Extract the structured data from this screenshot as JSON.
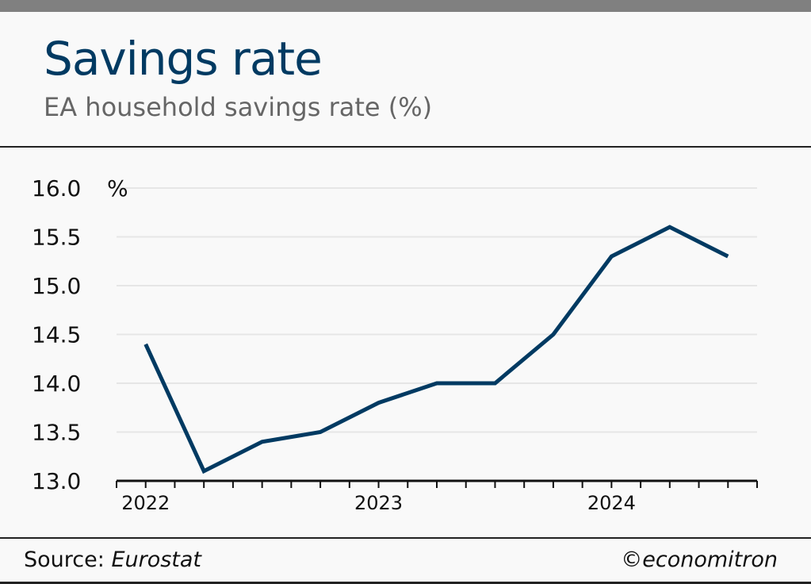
{
  "header": {
    "title": "Savings rate",
    "subtitle": "EA household savings rate (%)"
  },
  "footer": {
    "source_label": "Source:",
    "source": "Eurostat",
    "credit": "©economitron"
  },
  "chart_data": {
    "type": "line",
    "title": "Savings rate",
    "subtitle": "EA household savings rate (%)",
    "ylabel": "%",
    "ylim": [
      13.0,
      16.0
    ],
    "yticks": [
      "13.0",
      "13.5",
      "14.0",
      "14.5",
      "15.0",
      "15.5",
      "16.0"
    ],
    "xticks": [
      "2022",
      "2023",
      "2024"
    ],
    "x": [
      "2022Q1",
      "2022Q2",
      "2022Q3",
      "2022Q4",
      "2023Q1",
      "2023Q2",
      "2023Q3",
      "2023Q4",
      "2024Q1",
      "2024Q2",
      "2024Q3"
    ],
    "series": [
      {
        "name": "EA household savings rate",
        "color": "#003a62",
        "values": [
          14.4,
          13.1,
          13.4,
          13.5,
          13.8,
          14.0,
          14.0,
          14.5,
          15.3,
          15.6,
          15.3
        ]
      }
    ],
    "grid": true
  }
}
